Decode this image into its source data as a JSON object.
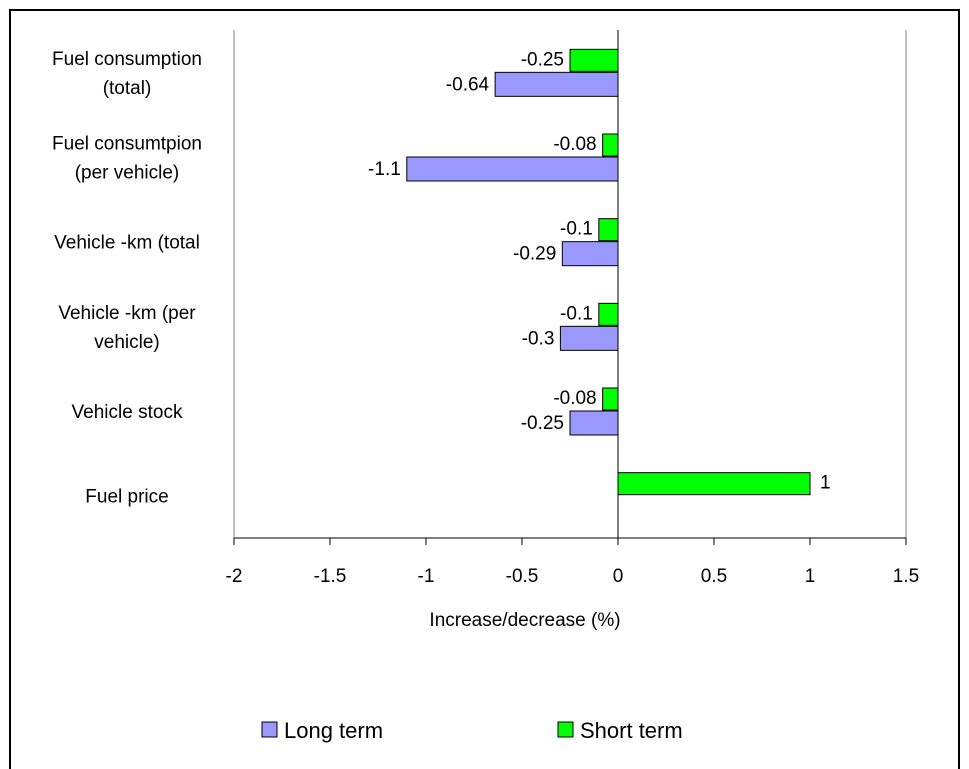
{
  "chart_data": {
    "type": "bar",
    "orientation": "horizontal",
    "categories": [
      [
        "Fuel consumption",
        "(total)"
      ],
      [
        "Fuel consumtpion",
        "(per vehicle)"
      ],
      [
        "Vehicle -km (total"
      ],
      [
        "Vehicle -km (per",
        "vehicle)"
      ],
      [
        "Vehicle stock"
      ],
      [
        "Fuel price"
      ]
    ],
    "series": [
      {
        "name": "Long term",
        "color": "#9999ff",
        "values": [
          -0.64,
          -1.1,
          -0.29,
          -0.3,
          -0.25,
          null
        ]
      },
      {
        "name": "Short term",
        "color": "#00ff00",
        "values": [
          -0.25,
          -0.08,
          -0.1,
          -0.1,
          -0.08,
          1
        ]
      }
    ],
    "data_labels": {
      "Long term": [
        "-0.64",
        "-1.1",
        "-0.29",
        "-0.3",
        "-0.25",
        ""
      ],
      "Short term": [
        "-0.25",
        "-0.08",
        "-0.1",
        "-0.1",
        "-0.08",
        "1"
      ]
    },
    "xlabel": "Increase/decrease (%)",
    "xlim": [
      -2,
      1.5
    ],
    "xticks": [
      -2,
      -1.5,
      -1,
      -0.5,
      0,
      0.5,
      1,
      1.5
    ],
    "xtick_labels": [
      "-2",
      "-1.5",
      "-1",
      "-0.5",
      "0",
      "0.5",
      "1",
      "1.5"
    ],
    "grid": false,
    "legend_position": "bottom"
  }
}
